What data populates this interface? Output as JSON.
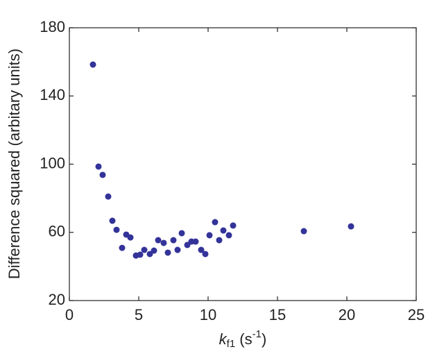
{
  "chart_data": {
    "type": "scatter",
    "ylabel": "Difference squared (arbitary units)",
    "xlabel": [
      "k",
      "f1",
      " (s",
      "-1",
      ")"
    ],
    "xlim": [
      0,
      25
    ],
    "ylim": [
      20,
      180
    ],
    "xticks": [
      0,
      5,
      10,
      15,
      20,
      25
    ],
    "yticks": [
      20,
      60,
      100,
      140,
      180
    ],
    "color": "#333399",
    "x": [
      1.7,
      2.1,
      2.4,
      2.8,
      3.1,
      3.4,
      3.8,
      4.1,
      4.4,
      4.8,
      5.1,
      5.4,
      5.8,
      6.1,
      6.4,
      6.8,
      7.1,
      7.5,
      7.8,
      8.1,
      8.5,
      8.8,
      9.1,
      9.5,
      9.8,
      10.1,
      10.5,
      10.8,
      11.1,
      11.5,
      11.8,
      16.9,
      20.3
    ],
    "values": [
      158.4,
      98.6,
      93.7,
      81,
      66.8,
      61.5,
      50.9,
      58.7,
      57,
      46.4,
      46.9,
      49.7,
      47.3,
      49.3,
      55.4,
      53.8,
      48.1,
      55.4,
      49.7,
      59.5,
      52.6,
      54.6,
      54.6,
      49.7,
      47.3,
      58.3,
      66,
      55.4,
      61.1,
      58.3,
      64,
      60.7,
      63.5
    ]
  }
}
